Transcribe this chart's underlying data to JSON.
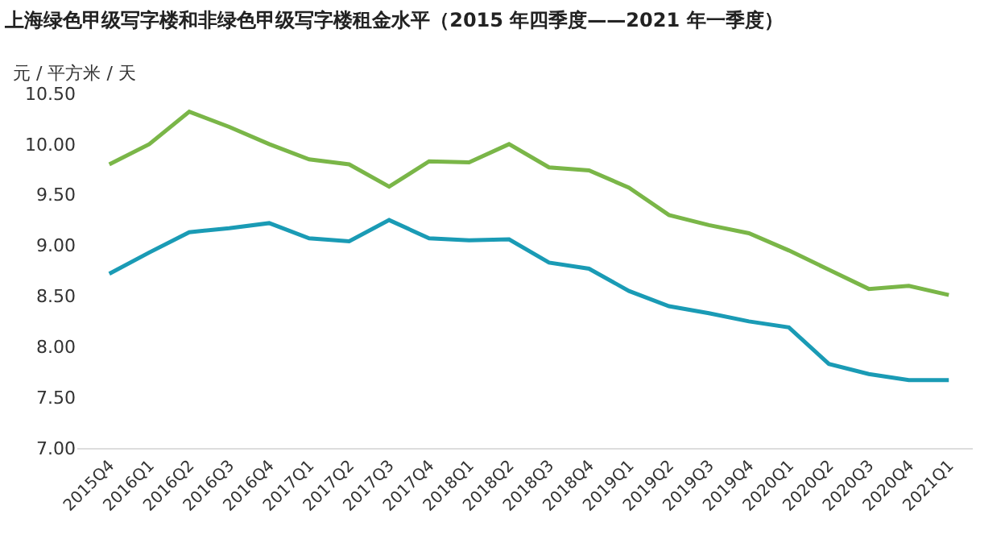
{
  "chart_data": {
    "type": "line",
    "title": "上海绿色甲级写字楼和非绿色甲级写字楼租金水平（2015 年四季度——2021 年一季度）",
    "ylabel": "元 / 平方米 / 天",
    "categories": [
      "2015Q4",
      "2016Q1",
      "2016Q2",
      "2016Q3",
      "2016Q4",
      "2017Q1",
      "2017Q2",
      "2017Q3",
      "2017Q4",
      "2018Q1",
      "2018Q2",
      "2018Q3",
      "2018Q4",
      "2019Q1",
      "2019Q2",
      "2019Q3",
      "2019Q4",
      "2020Q1",
      "2020Q2",
      "2020Q3",
      "2020Q4",
      "2021Q1"
    ],
    "series": [
      {
        "color": "#7ab648",
        "values": [
          9.8,
          10.0,
          10.32,
          10.17,
          10.0,
          9.85,
          9.8,
          9.58,
          9.83,
          9.82,
          10.0,
          9.77,
          9.74,
          9.57,
          9.3,
          9.2,
          9.12,
          8.95,
          8.76,
          8.57,
          8.6,
          8.51
        ]
      },
      {
        "color": "#1a9bb5",
        "values": [
          8.72,
          8.93,
          9.13,
          9.17,
          9.22,
          9.07,
          9.04,
          9.25,
          9.07,
          9.05,
          9.06,
          8.83,
          8.77,
          8.55,
          8.4,
          8.33,
          8.25,
          8.19,
          7.83,
          7.73,
          7.67,
          7.67
        ]
      }
    ],
    "ylim": [
      7.0,
      10.5
    ],
    "yticks": [
      {
        "value": 7,
        "label": "7.00"
      },
      {
        "value": 7.5,
        "label": "7.50"
      },
      {
        "value": 8,
        "label": "8.00"
      },
      {
        "value": 8.5,
        "label": "8.50"
      },
      {
        "value": 9,
        "label": "9.00"
      },
      {
        "value": 9.5,
        "label": "9.50"
      },
      {
        "value": 10,
        "label": "10.00"
      },
      {
        "value": 10.5,
        "label": "10.50"
      }
    ],
    "marker": "none",
    "line_style": "solid"
  }
}
